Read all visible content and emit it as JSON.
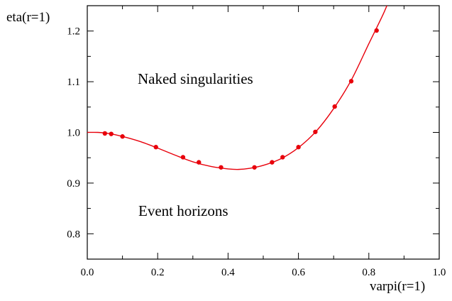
{
  "chart_data": {
    "type": "scatter",
    "title": "",
    "xlabel": "varpi(r=1)",
    "ylabel": "eta(r=1)",
    "xlim": [
      0.0,
      1.0
    ],
    "ylim": [
      0.75,
      1.25
    ],
    "xticks": [
      "0.0",
      "0.2",
      "0.4",
      "0.6",
      "0.8",
      "1.0"
    ],
    "yticks": [
      "0.8",
      "0.9",
      "1.0",
      "1.1",
      "1.2"
    ],
    "grid": false,
    "colors": {
      "points": "#e8000b",
      "curve": "#e8000b",
      "axes": "#000000"
    },
    "annotations": [
      "Naked singularities",
      "Event horizons"
    ],
    "series": [
      {
        "kind": "points",
        "x": [
          0.05,
          0.068,
          0.1,
          0.195,
          0.272,
          0.317,
          0.38,
          0.475,
          0.525,
          0.555,
          0.6,
          0.648,
          0.703,
          0.75,
          0.822
        ],
        "y": [
          0.998,
          0.997,
          0.992,
          0.971,
          0.951,
          0.941,
          0.931,
          0.931,
          0.941,
          0.951,
          0.971,
          1.001,
          1.051,
          1.101,
          1.201
        ]
      },
      {
        "kind": "fit-curve",
        "x": [
          0.0,
          0.03,
          0.06,
          0.1,
          0.15,
          0.2,
          0.25,
          0.3,
          0.35,
          0.4,
          0.43,
          0.46,
          0.5,
          0.55,
          0.6,
          0.65,
          0.7,
          0.75,
          0.8,
          0.84,
          0.86
        ],
        "y": [
          1.0,
          1.0,
          0.998,
          0.992,
          0.982,
          0.969,
          0.955,
          0.942,
          0.933,
          0.928,
          0.927,
          0.929,
          0.935,
          0.948,
          0.97,
          1.002,
          1.047,
          1.103,
          1.175,
          1.232,
          1.265
        ]
      }
    ]
  }
}
